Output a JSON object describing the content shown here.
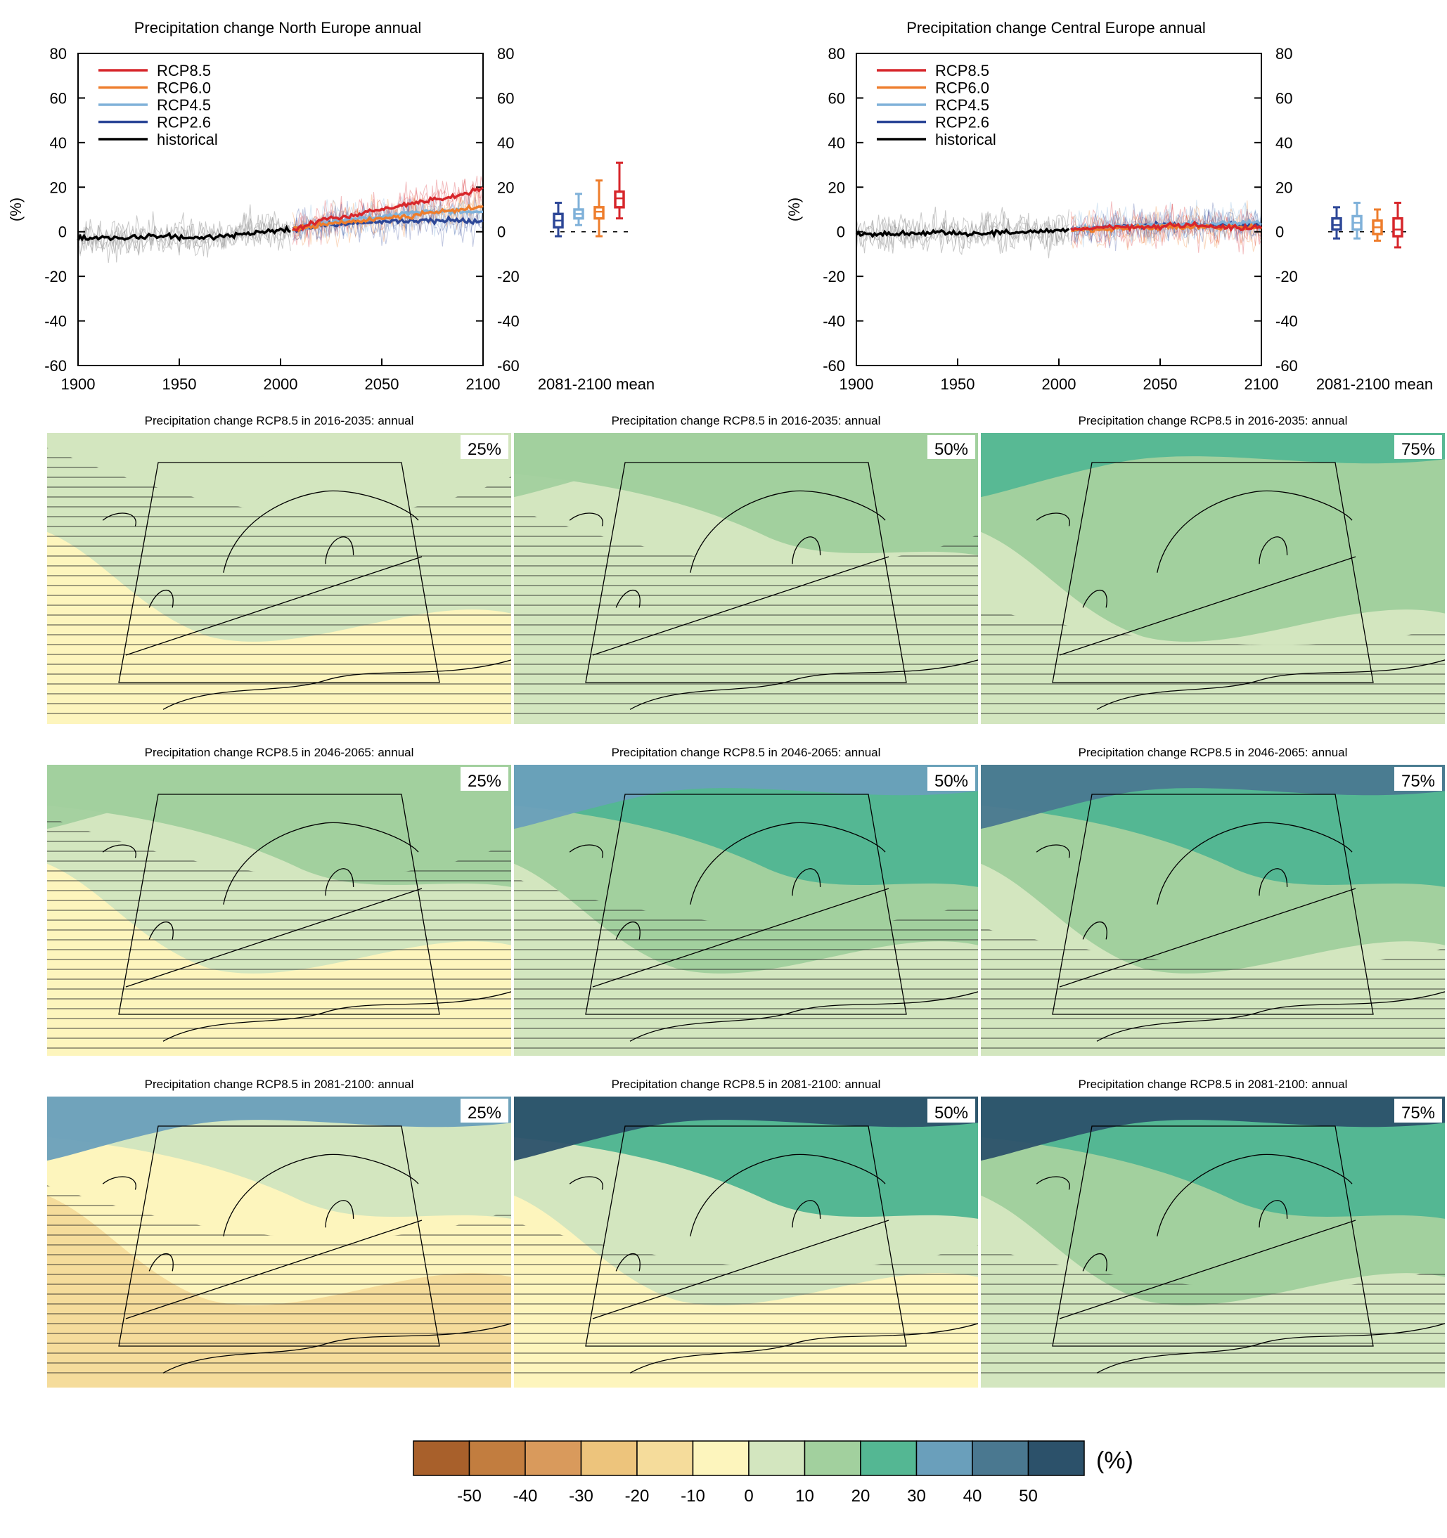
{
  "colors": {
    "rcp85": "#d7262b",
    "rcp60": "#ee7d2c",
    "rcp45": "#7fb1d9",
    "rcp26": "#2d4797",
    "historical": "#000000",
    "ensemble_hist": "#9a9a9a"
  },
  "chart_data": [
    {
      "type": "line",
      "id": "north",
      "title": "Precipitation change North Europe annual",
      "ylabel": "(%)",
      "xlim": [
        1900,
        2100
      ],
      "ylim": [
        -60,
        80
      ],
      "xticks": [
        "1900",
        "1950",
        "2000",
        "2050",
        "2100"
      ],
      "yticks": [
        "80",
        "60",
        "40",
        "20",
        "0",
        "-20",
        "-40",
        "-60"
      ],
      "legend_position": "top-left",
      "series": [
        {
          "name": "RCP8.5",
          "color_key": "rcp85",
          "x": [
            2006,
            2020,
            2040,
            2060,
            2080,
            2100
          ],
          "values": [
            1,
            5,
            8,
            12,
            15,
            19
          ]
        },
        {
          "name": "RCP6.0",
          "color_key": "rcp60",
          "x": [
            2006,
            2020,
            2040,
            2060,
            2080,
            2100
          ],
          "values": [
            1,
            3,
            5,
            7,
            9,
            11
          ]
        },
        {
          "name": "RCP4.5",
          "color_key": "rcp45",
          "x": [
            2006,
            2020,
            2040,
            2060,
            2080,
            2100
          ],
          "values": [
            1,
            4,
            6,
            8,
            9,
            9
          ]
        },
        {
          "name": "RCP2.6",
          "color_key": "rcp26",
          "x": [
            2006,
            2020,
            2040,
            2060,
            2080,
            2100
          ],
          "values": [
            1,
            3,
            4,
            5,
            5,
            5
          ]
        },
        {
          "name": "historical",
          "color_key": "historical",
          "x": [
            1900,
            1920,
            1940,
            1960,
            1980,
            2000,
            2005
          ],
          "values": [
            -3,
            -3,
            -2,
            -3,
            -1,
            1,
            1
          ]
        }
      ],
      "box_label": "2081-2100 mean",
      "boxes": [
        {
          "scenario": "RCP2.6",
          "color_key": "rcp26",
          "min": -2,
          "q1": 2,
          "median": 5,
          "q3": 8,
          "max": 13
        },
        {
          "scenario": "RCP4.5",
          "color_key": "rcp45",
          "min": 3,
          "q1": 6,
          "median": 8,
          "q3": 10,
          "max": 17
        },
        {
          "scenario": "RCP6.0",
          "color_key": "rcp60",
          "min": -2,
          "q1": 6,
          "median": 9,
          "q3": 11,
          "max": 23
        },
        {
          "scenario": "RCP8.5",
          "color_key": "rcp85",
          "min": 6,
          "q1": 11,
          "median": 15,
          "q3": 18,
          "max": 31
        }
      ]
    },
    {
      "type": "line",
      "id": "central",
      "title": "Precipitation change Central Europe annual",
      "ylabel": "(%)",
      "xlim": [
        1900,
        2100
      ],
      "ylim": [
        -60,
        80
      ],
      "xticks": [
        "1900",
        "1950",
        "2000",
        "2050",
        "2100"
      ],
      "yticks": [
        "80",
        "60",
        "40",
        "20",
        "0",
        "-20",
        "-40",
        "-60"
      ],
      "legend_position": "top-left",
      "series": [
        {
          "name": "RCP8.5",
          "color_key": "rcp85",
          "x": [
            2006,
            2020,
            2040,
            2060,
            2080,
            2100
          ],
          "values": [
            1,
            2,
            2,
            3,
            2,
            2
          ]
        },
        {
          "name": "RCP6.0",
          "color_key": "rcp60",
          "x": [
            2006,
            2020,
            2040,
            2060,
            2080,
            2100
          ],
          "values": [
            1,
            1,
            2,
            2,
            2,
            2
          ]
        },
        {
          "name": "RCP4.5",
          "color_key": "rcp45",
          "x": [
            2006,
            2020,
            2040,
            2060,
            2080,
            2100
          ],
          "values": [
            1,
            2,
            3,
            3,
            4,
            4
          ]
        },
        {
          "name": "RCP2.6",
          "color_key": "rcp26",
          "x": [
            2006,
            2020,
            2040,
            2060,
            2080,
            2100
          ],
          "values": [
            1,
            2,
            3,
            3,
            3,
            3
          ]
        },
        {
          "name": "historical",
          "color_key": "historical",
          "x": [
            1900,
            1920,
            1940,
            1960,
            1980,
            2000,
            2005
          ],
          "values": [
            -1,
            -1,
            0,
            -1,
            0,
            0,
            1
          ]
        }
      ],
      "box_label": "2081-2100 mean",
      "boxes": [
        {
          "scenario": "RCP2.6",
          "color_key": "rcp26",
          "min": -3,
          "q1": 1,
          "median": 3,
          "q3": 6,
          "max": 11
        },
        {
          "scenario": "RCP4.5",
          "color_key": "rcp45",
          "min": -3,
          "q1": 1,
          "median": 4,
          "q3": 7,
          "max": 13
        },
        {
          "scenario": "RCP6.0",
          "color_key": "rcp60",
          "min": -4,
          "q1": -1,
          "median": 2,
          "q3": 5,
          "max": 10
        },
        {
          "scenario": "RCP8.5",
          "color_key": "rcp85",
          "min": -7,
          "q1": -2,
          "median": 1,
          "q3": 6,
          "max": 13
        }
      ]
    },
    {
      "type": "heatmap",
      "id": "maps",
      "rows": [
        {
          "period": "2016-2035",
          "panels": [
            {
              "title": "Precipitation change RCP8.5 in 2016-2035: annual",
              "percentile": "25%"
            },
            {
              "title": "Precipitation change RCP8.5 in 2016-2035: annual",
              "percentile": "50%"
            },
            {
              "title": "Precipitation change RCP8.5 in 2016-2035: annual",
              "percentile": "75%"
            }
          ]
        },
        {
          "period": "2046-2065",
          "panels": [
            {
              "title": "Precipitation change RCP8.5 in 2046-2065: annual",
              "percentile": "25%"
            },
            {
              "title": "Precipitation change RCP8.5 in 2046-2065: annual",
              "percentile": "50%"
            },
            {
              "title": "Precipitation change RCP8.5 in 2046-2065: annual",
              "percentile": "75%"
            }
          ]
        },
        {
          "period": "2081-2100",
          "panels": [
            {
              "title": "Precipitation change RCP8.5 in 2081-2100: annual",
              "percentile": "25%"
            },
            {
              "title": "Precipitation change RCP8.5 in 2081-2100: annual",
              "percentile": "50%"
            },
            {
              "title": "Precipitation change RCP8.5 in 2081-2100: annual",
              "percentile": "75%"
            }
          ]
        }
      ],
      "colorbar": {
        "unit": "(%)",
        "tick_labels": [
          "-50",
          "-40",
          "-30",
          "-20",
          "-10",
          "0",
          "10",
          "20",
          "30",
          "40",
          "50"
        ],
        "colors": [
          "#a8602b",
          "#c27d3f",
          "#d99a5c",
          "#edc47c",
          "#f5dc9b",
          "#fdf5bd",
          "#d3e6bf",
          "#a2d09e",
          "#54b793",
          "#6a9fbb",
          "#4a7890",
          "#2c516a"
        ]
      }
    }
  ]
}
